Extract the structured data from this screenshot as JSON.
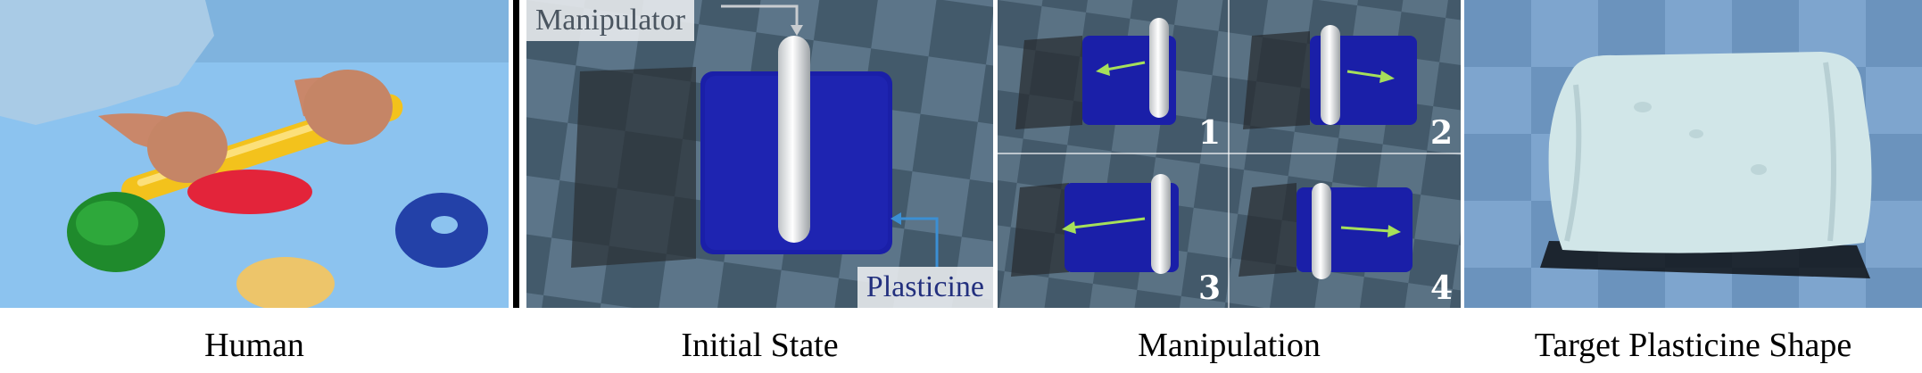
{
  "captions": {
    "human": "Human",
    "initial": "Initial State",
    "manipulation": "Manipulation",
    "target": "Target Plasticine Shape"
  },
  "labels": {
    "manipulator": "Manipulator",
    "plasticine": "Plasticine"
  },
  "steps": [
    "1",
    "2",
    "3",
    "4"
  ],
  "colors": {
    "plasticine": "#1a1fa8",
    "floor_light": "#5a7386",
    "floor_dark": "#3f5566",
    "arrow_green": "#a6e05a",
    "arrow_blue": "#3b8fd4",
    "target_floor": "#7aa2cc",
    "target_shape": "#d3e7e9"
  }
}
